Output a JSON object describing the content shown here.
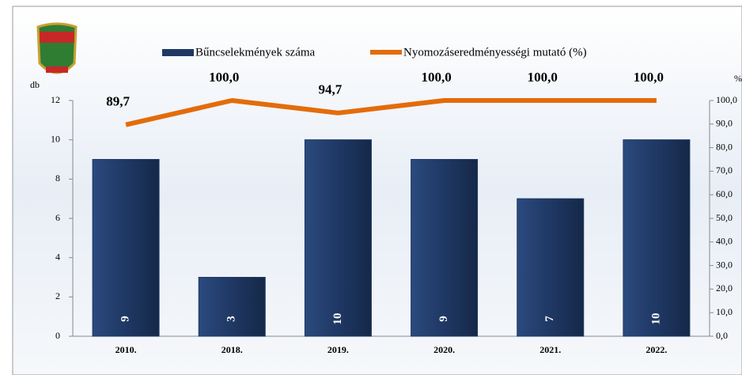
{
  "chart_data": {
    "type": "bar_line",
    "categories": [
      "2010.",
      "2018.",
      "2019.",
      "2020.",
      "2021.",
      "2022."
    ],
    "y_label": "db",
    "y2_label": "%",
    "series": [
      {
        "name": "Bűncselekmények száma",
        "color": "#1f3864",
        "type": "bar",
        "values": [
          9,
          3,
          10,
          9,
          7,
          10
        ]
      },
      {
        "name": "Nyomozáseredményességi mutató (%)",
        "color": "#e36c0a",
        "type": "line",
        "axis": "y2",
        "values": [
          89.7,
          100,
          94.7,
          100,
          100,
          100
        ],
        "value_labels": [
          "89,7",
          "100,0",
          "94,7",
          "100,0",
          "100,0",
          "100,0"
        ]
      }
    ],
    "ylim": [
      0,
      12
    ],
    "yticks": [
      0,
      2,
      4,
      6,
      8,
      10,
      12
    ],
    "y2lim": [
      0,
      100
    ],
    "y2ticks": [
      {
        "value": 0,
        "label": "0,0"
      },
      {
        "value": 10,
        "label": "10,0"
      },
      {
        "value": 20,
        "label": "20,0"
      },
      {
        "value": 30,
        "label": "30,0"
      },
      {
        "value": 40,
        "label": "40,0"
      },
      {
        "value": 50,
        "label": "50,0"
      },
      {
        "value": 60,
        "label": "60,0"
      },
      {
        "value": 70,
        "label": "70,0"
      },
      {
        "value": 80,
        "label": "80,0"
      },
      {
        "value": 90,
        "label": "90,0"
      },
      {
        "value": 100,
        "label": "100,0"
      }
    ]
  }
}
